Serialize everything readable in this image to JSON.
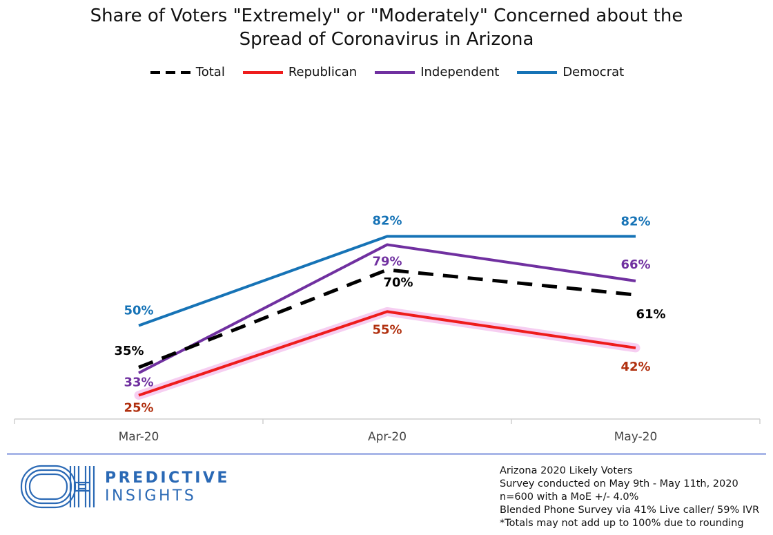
{
  "chart_data": {
    "type": "line",
    "title_lines": [
      "Share of Voters \"Extremely\" or \"Moderately\" Concerned about the",
      "Spread of Coronavirus in Arizona"
    ],
    "categories": [
      "Mar-20",
      "Apr-20",
      "May-20"
    ],
    "series": [
      {
        "name": "Total",
        "values": [
          35,
          70,
          61
        ],
        "labels": [
          "35%",
          "70%",
          "61%"
        ],
        "color": "#000000",
        "dashed": true
      },
      {
        "name": "Republican",
        "values": [
          25,
          55,
          42
        ],
        "labels": [
          "25%",
          "55%",
          "42%"
        ],
        "color": "#ee1c1c",
        "label_color": "#b1300f",
        "dashed": false
      },
      {
        "name": "Independent",
        "values": [
          33,
          79,
          66
        ],
        "labels": [
          "33%",
          "79%",
          "66%"
        ],
        "color": "#7030a0",
        "dashed": false
      },
      {
        "name": "Democrat",
        "values": [
          50,
          82,
          82
        ],
        "labels": [
          "50%",
          "82%",
          "82%"
        ],
        "color": "#1673b6",
        "dashed": false
      }
    ],
    "legend_position": "top-center",
    "grid": false
  },
  "brand": {
    "logo_mark": "OH",
    "line1": "PREDICTIVE",
    "line2": "INSIGHTS",
    "color": "#2a69b5"
  },
  "notes": [
    "Arizona 2020 Likely Voters",
    "Survey conducted on May 9th - May 11th, 2020",
    "n=600 with a MoE +/- 4.0%",
    "Blended Phone Survey via 41% Live caller/ 59% IVR",
    "*Totals may not add up to 100% due to rounding"
  ]
}
